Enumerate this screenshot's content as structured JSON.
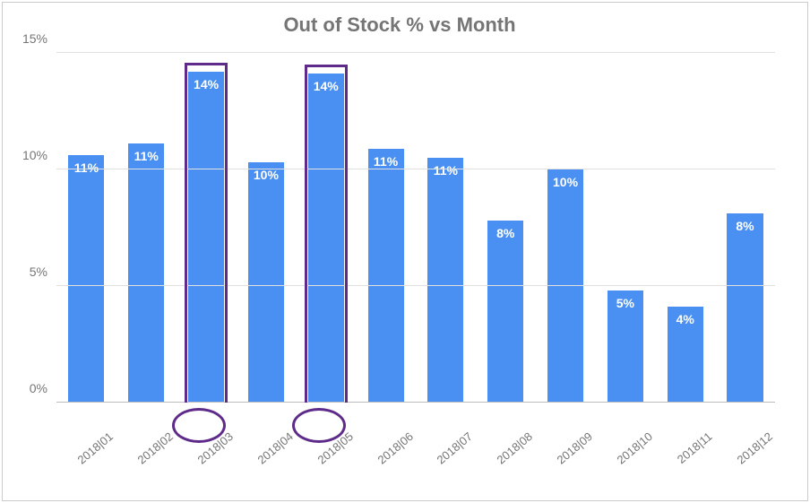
{
  "chart": {
    "type": "bar",
    "title": "Out of Stock % vs Month",
    "title_fontsize": 22,
    "title_color": "#757575",
    "background_color": "#ffffff",
    "border_color": "#cccccc",
    "grid_color": "#e0e0e0",
    "axis_color": "#bdbdbd",
    "label_color": "#757575",
    "categories": [
      "2018|01",
      "2018|02",
      "2018|03",
      "2018|04",
      "2018|05",
      "2018|06",
      "2018|07",
      "2018|08",
      "2018|09",
      "2018|10",
      "2018|11",
      "2018|12"
    ],
    "values": [
      10.6,
      11.1,
      14.2,
      10.3,
      14.1,
      10.9,
      10.5,
      7.8,
      10.0,
      4.8,
      4.1,
      8.1
    ],
    "display_labels": [
      "11%",
      "11%",
      "14%",
      "10%",
      "14%",
      "11%",
      "11%",
      "8%",
      "10%",
      "5%",
      "4%",
      "8%"
    ],
    "bar_color": "#4a90f2",
    "bar_label_color": "#ffffff",
    "bar_label_fontsize": 14,
    "bar_width_ratio": 0.6,
    "ylim": [
      0,
      15
    ],
    "yticks": [
      0,
      5,
      10,
      15
    ],
    "ytick_labels": [
      "0%",
      "5%",
      "10%",
      "15%"
    ],
    "xlabel_fontsize": 13,
    "xlabel_rotate_deg": -40,
    "highlights": {
      "indices": [
        2,
        4
      ],
      "box_color": "#5e2b8a",
      "box_stroke": 3,
      "circle_color": "#5e2b8a",
      "circle_stroke": 3,
      "circle_diameter": 60
    }
  }
}
